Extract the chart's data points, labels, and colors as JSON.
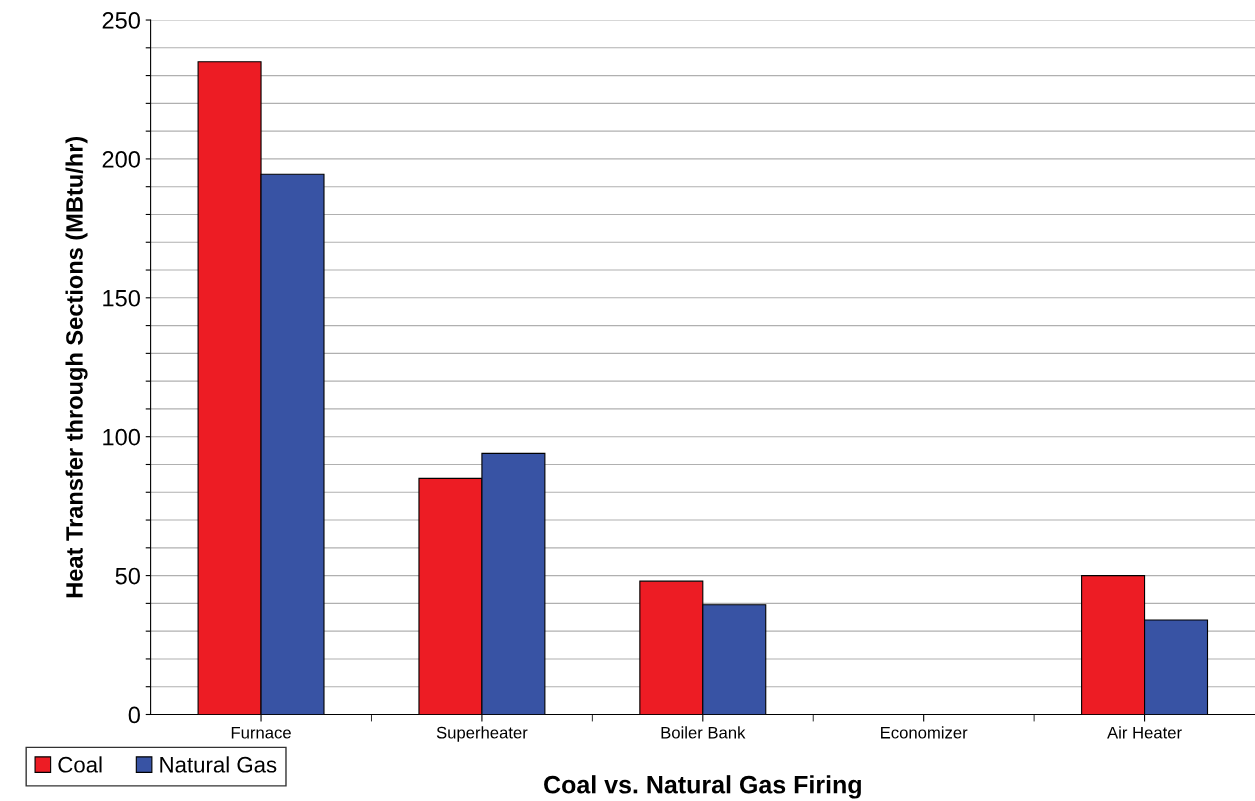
{
  "chart_data": {
    "type": "bar",
    "xlabel": "Coal vs. Natural Gas Firing",
    "ylabel": "Heat Transfer through Sections (MBtu/hr)",
    "categories": [
      "Furnace",
      "Superheater",
      "Boiler Bank",
      "Economizer",
      "Air Heater"
    ],
    "series": [
      {
        "name": "Coal",
        "color": "#ed1c24",
        "values": [
          235,
          85,
          48,
          null,
          50
        ]
      },
      {
        "name": "Natural Gas",
        "color": "#3853a4",
        "values": [
          194.5,
          94,
          39.5,
          null,
          34
        ]
      }
    ],
    "ylim": [
      0,
      250
    ],
    "yticks": [
      0,
      {
        "value": 10,
        "label": null
      },
      {
        "value": 20,
        "label": null
      },
      {
        "value": 30,
        "label": null
      },
      {
        "value": 40,
        "label": null
      },
      50,
      {
        "value": 60,
        "label": null
      },
      {
        "value": 70,
        "label": null
      },
      {
        "value": 80,
        "label": null
      },
      {
        "value": 90,
        "label": null
      },
      100,
      {
        "value": 110,
        "label": null
      },
      {
        "value": 120,
        "label": null
      },
      {
        "value": 130,
        "label": null
      },
      {
        "value": 140,
        "label": null
      },
      150,
      {
        "value": 160,
        "label": null
      },
      {
        "value": 170,
        "label": null
      },
      {
        "value": 180,
        "label": null
      },
      {
        "value": 190,
        "label": null
      },
      200,
      {
        "value": 210,
        "label": null
      },
      {
        "value": 220,
        "label": null
      },
      {
        "value": 230,
        "label": null
      },
      {
        "value": 240,
        "label": null
      },
      250
    ],
    "grid": "y",
    "legend": "bottom left"
  }
}
